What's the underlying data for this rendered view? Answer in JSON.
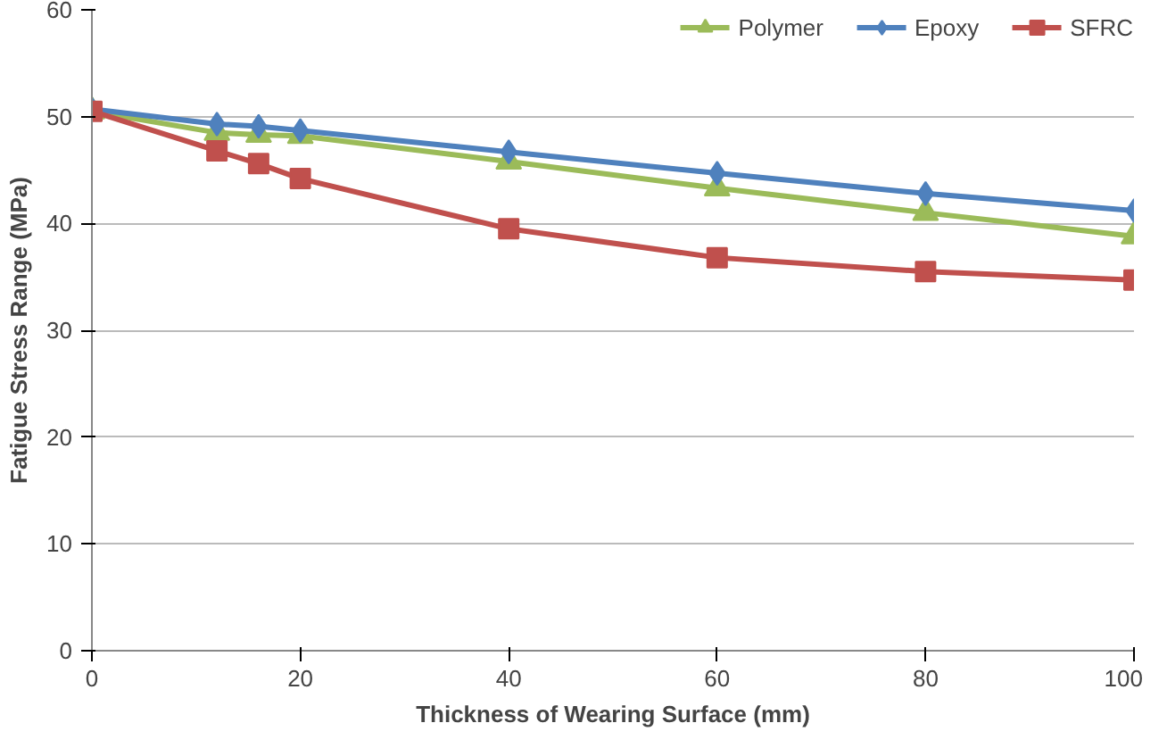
{
  "chart_data": {
    "type": "line",
    "xlabel": "Thickness of Wearing Surface (mm)",
    "ylabel": "Fatigue Stress Range (MPa)",
    "x": [
      0,
      12,
      16,
      20,
      40,
      60,
      80,
      100
    ],
    "series": [
      {
        "name": "Polymer",
        "color": "#9bbb59",
        "marker": "triangle",
        "values": [
          50.5,
          48.5,
          48.3,
          48.2,
          45.8,
          43.3,
          41,
          38.8
        ]
      },
      {
        "name": "Epoxy",
        "color": "#4f81bd",
        "marker": "diamond",
        "values": [
          50.7,
          49.3,
          49.1,
          48.7,
          46.7,
          44.7,
          42.8,
          41.2
        ]
      },
      {
        "name": "SFRC",
        "color": "#c0504d",
        "marker": "square",
        "values": [
          50.5,
          46.8,
          45.6,
          44.2,
          39.5,
          36.8,
          35.5,
          34.7
        ]
      }
    ],
    "xlim": [
      0,
      100
    ],
    "xticks": [
      0,
      20,
      40,
      60,
      80,
      100
    ],
    "ylim": [
      0,
      60
    ],
    "yticks": [
      0,
      10,
      20,
      30,
      40,
      50,
      60
    ],
    "grid": "y",
    "legend": "top right",
    "line_style": "solid"
  }
}
